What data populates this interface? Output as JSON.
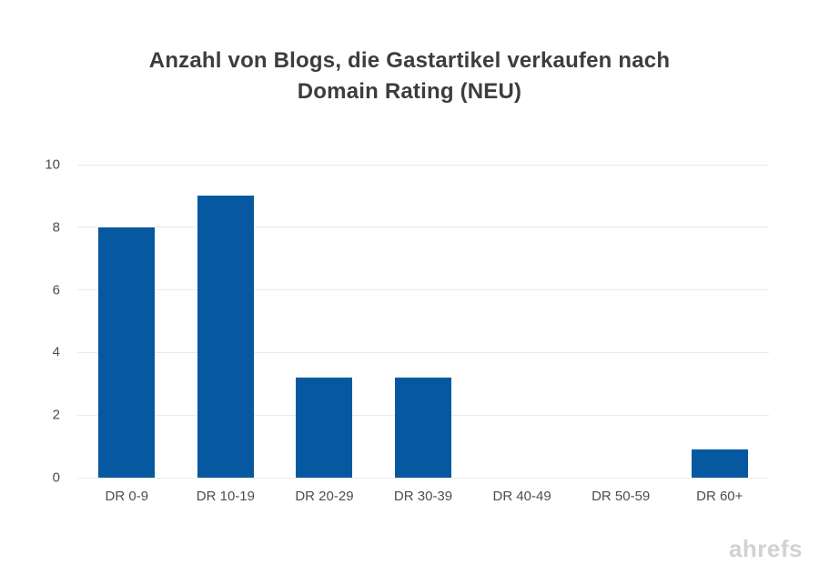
{
  "header": {
    "title_line1": "Anzahl von Blogs, die Gastartikel verkaufen nach",
    "title_line2": "Domain Rating (NEU)"
  },
  "chart_data": {
    "type": "bar",
    "title": "Anzahl von Blogs, die Gastartikel verkaufen nach Domain Rating (NEU)",
    "categories": [
      "DR 0-9",
      "DR 10-19",
      "DR 20-29",
      "DR 30-39",
      "DR 40-49",
      "DR 50-59",
      "DR 60+"
    ],
    "values": [
      8,
      9,
      3.2,
      3.2,
      0,
      0,
      0.9
    ],
    "xlabel": "",
    "ylabel": "",
    "ylim": [
      0,
      10
    ],
    "yticks": [
      0,
      2,
      4,
      6,
      8,
      10
    ],
    "grid": true,
    "legend": false,
    "colors": {
      "bar": "#0659a0",
      "gridline": "#e9e9e9",
      "axis_labels": "#4d4d4d",
      "title": "#3d3d3d",
      "watermark": "#d2d2d2"
    }
  },
  "footer": {
    "watermark": "ahrefs"
  }
}
